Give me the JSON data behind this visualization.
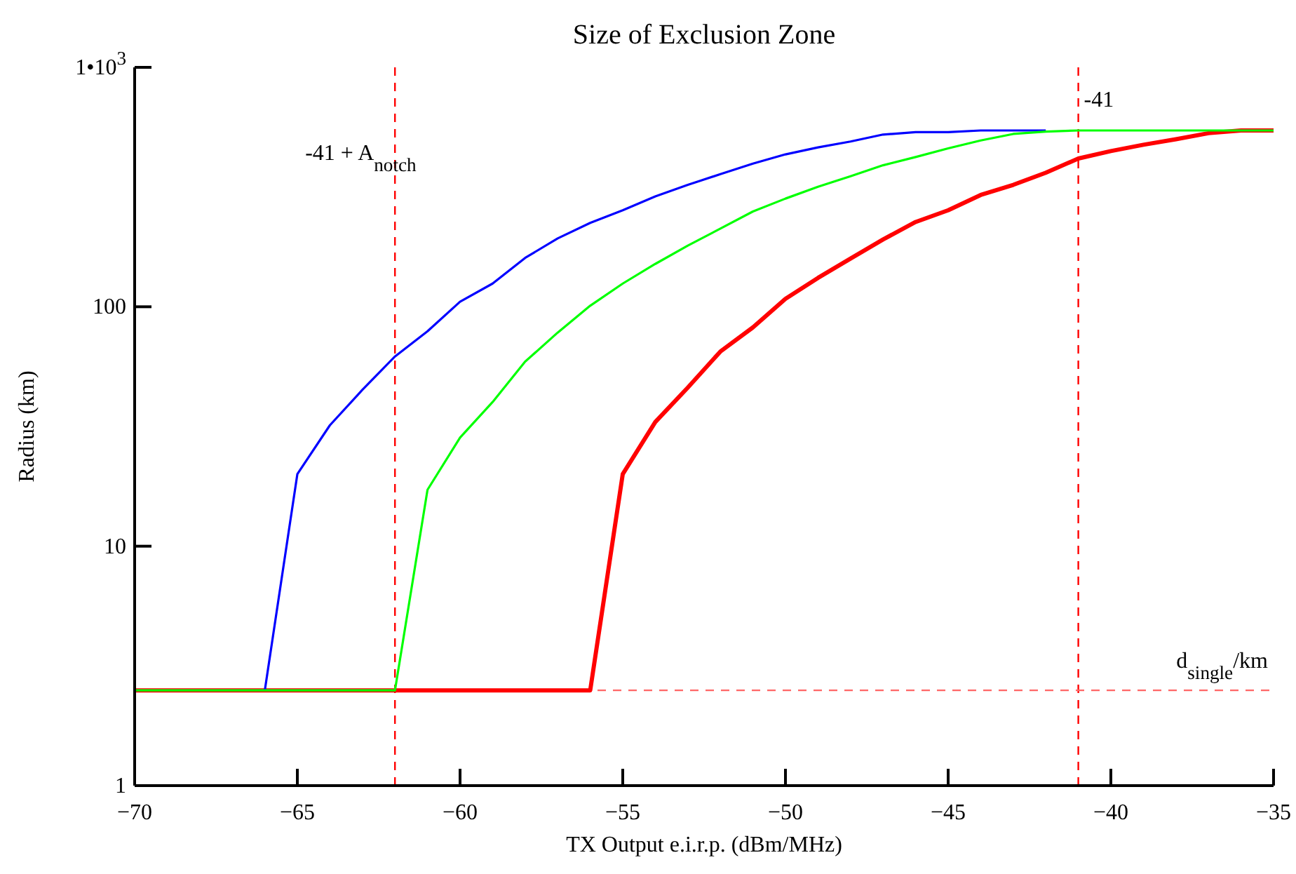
{
  "chart_data": {
    "type": "line",
    "title": "Size of Exclusion Zone",
    "xlabel": "TX Output e.i.r.p. (dBm/MHz)",
    "ylabel": "Radius (km)",
    "x": [
      -70,
      -69,
      -68,
      -67,
      -66,
      -65,
      -64,
      -63,
      -62,
      -61,
      -60,
      -59,
      -58,
      -57,
      -56,
      -55,
      -54,
      -53,
      -52,
      -51,
      -50,
      -49,
      -48,
      -47,
      -46,
      -45,
      -44,
      -43,
      -42,
      -41,
      -40,
      -39,
      -38,
      -37,
      -36,
      -35
    ],
    "series": [
      {
        "color": "#ff0000",
        "values": [
          2.5,
          2.5,
          2.5,
          2.5,
          2.5,
          2.5,
          2.5,
          2.5,
          2.5,
          2.5,
          2.5,
          2.5,
          2.5,
          2.5,
          2.5,
          20,
          33,
          46,
          65,
          82,
          108,
          132,
          159,
          191,
          226,
          253,
          293,
          323,
          363,
          416,
          447,
          475,
          501,
          531,
          545,
          545
        ]
      },
      {
        "color": "#0000ff",
        "values": [
          null,
          null,
          null,
          null,
          2.5,
          20,
          32,
          45,
          62,
          79,
          105,
          125,
          160,
          193,
          224,
          253,
          289,
          323,
          358,
          396,
          433,
          463,
          490,
          524,
          536,
          536,
          545,
          545,
          545,
          null,
          null,
          null,
          null,
          null,
          null,
          null
        ]
      },
      {
        "color": "#00ff00",
        "values": [
          2.5,
          2.5,
          2.5,
          2.5,
          2.5,
          2.5,
          2.5,
          2.5,
          2.5,
          17.2,
          28.4,
          40,
          59,
          78,
          101,
          125,
          151,
          180,
          212,
          250,
          283,
          317,
          351,
          390,
          422,
          459,
          495,
          527,
          539,
          545,
          545,
          545,
          545,
          545,
          545,
          545
        ]
      }
    ],
    "xlim": [
      -70,
      -35
    ],
    "xticks": [
      -70,
      -65,
      -60,
      -55,
      -50,
      -45,
      -40,
      -35
    ],
    "ylim": [
      1,
      1000
    ],
    "yticks": [
      1,
      10,
      100,
      {
        "value": 1000,
        "label": "1•10$^{3}$"
      }
    ],
    "log": "y",
    "ref_lines": [
      {
        "axis": "x",
        "value": -62,
        "label": "-41 + A$_{notch}$",
        "color": "#ff0000",
        "line_style": "dashed"
      },
      {
        "axis": "x",
        "value": -41,
        "label": "-41",
        "color": "#ff0000",
        "line_style": "dashed"
      },
      {
        "axis": "y",
        "value": 2.5,
        "label": "d$_{single}$/km",
        "color": "#ff6666",
        "line_style": "dashed"
      }
    ],
    "grid": false,
    "legend": false,
    "marker": "none",
    "line_style": "solid"
  }
}
